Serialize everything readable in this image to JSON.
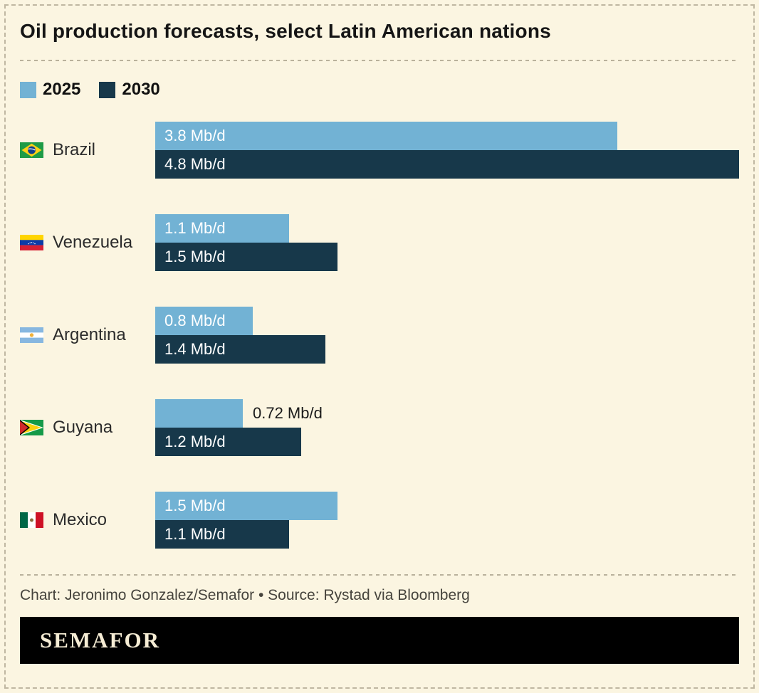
{
  "header": {
    "title": "Oil production forecasts, select Latin American nations"
  },
  "chart_data": {
    "type": "bar",
    "orientation": "horizontal",
    "title": "Oil production forecasts, select Latin American nations",
    "unit": "Mb/d",
    "xlim": [
      0,
      4.8
    ],
    "grid": false,
    "legend_position": "top-left",
    "categories": [
      "Brazil",
      "Venezuela",
      "Argentina",
      "Guyana",
      "Mexico"
    ],
    "flags": [
      "brazil-flag-icon",
      "venezuela-flag-icon",
      "argentina-flag-icon",
      "guyana-flag-icon",
      "mexico-flag-icon"
    ],
    "series": [
      {
        "name": "2025",
        "color": "#72b2d4",
        "values": [
          3.8,
          1.1,
          0.8,
          0.72,
          1.5
        ],
        "labels": [
          "3.8 Mb/d",
          "1.1 Mb/d",
          "0.8 Mb/d",
          "0.72 Mb/d",
          "1.5 Mb/d"
        ]
      },
      {
        "name": "2030",
        "color": "#17384a",
        "values": [
          4.8,
          1.5,
          1.4,
          1.2,
          1.1
        ],
        "labels": [
          "4.8 Mb/d",
          "1.5 Mb/d",
          "1.4 Mb/d",
          "1.2 Mb/d",
          "1.1 Mb/d"
        ]
      }
    ],
    "label_outside": [
      [
        false,
        false,
        false,
        true,
        false
      ],
      [
        false,
        false,
        false,
        false,
        false
      ]
    ]
  },
  "footer": {
    "credit": "Chart: Jeronimo Gonzalez/Semafor • Source: Rystad via Bloomberg",
    "logo_text": "SEMAFOR"
  },
  "colors": {
    "background": "#fbf5e1",
    "bar_2025": "#72b2d4",
    "bar_2030": "#17384a",
    "logo_bar": "#000000",
    "logo_text": "#f5ecd4"
  }
}
